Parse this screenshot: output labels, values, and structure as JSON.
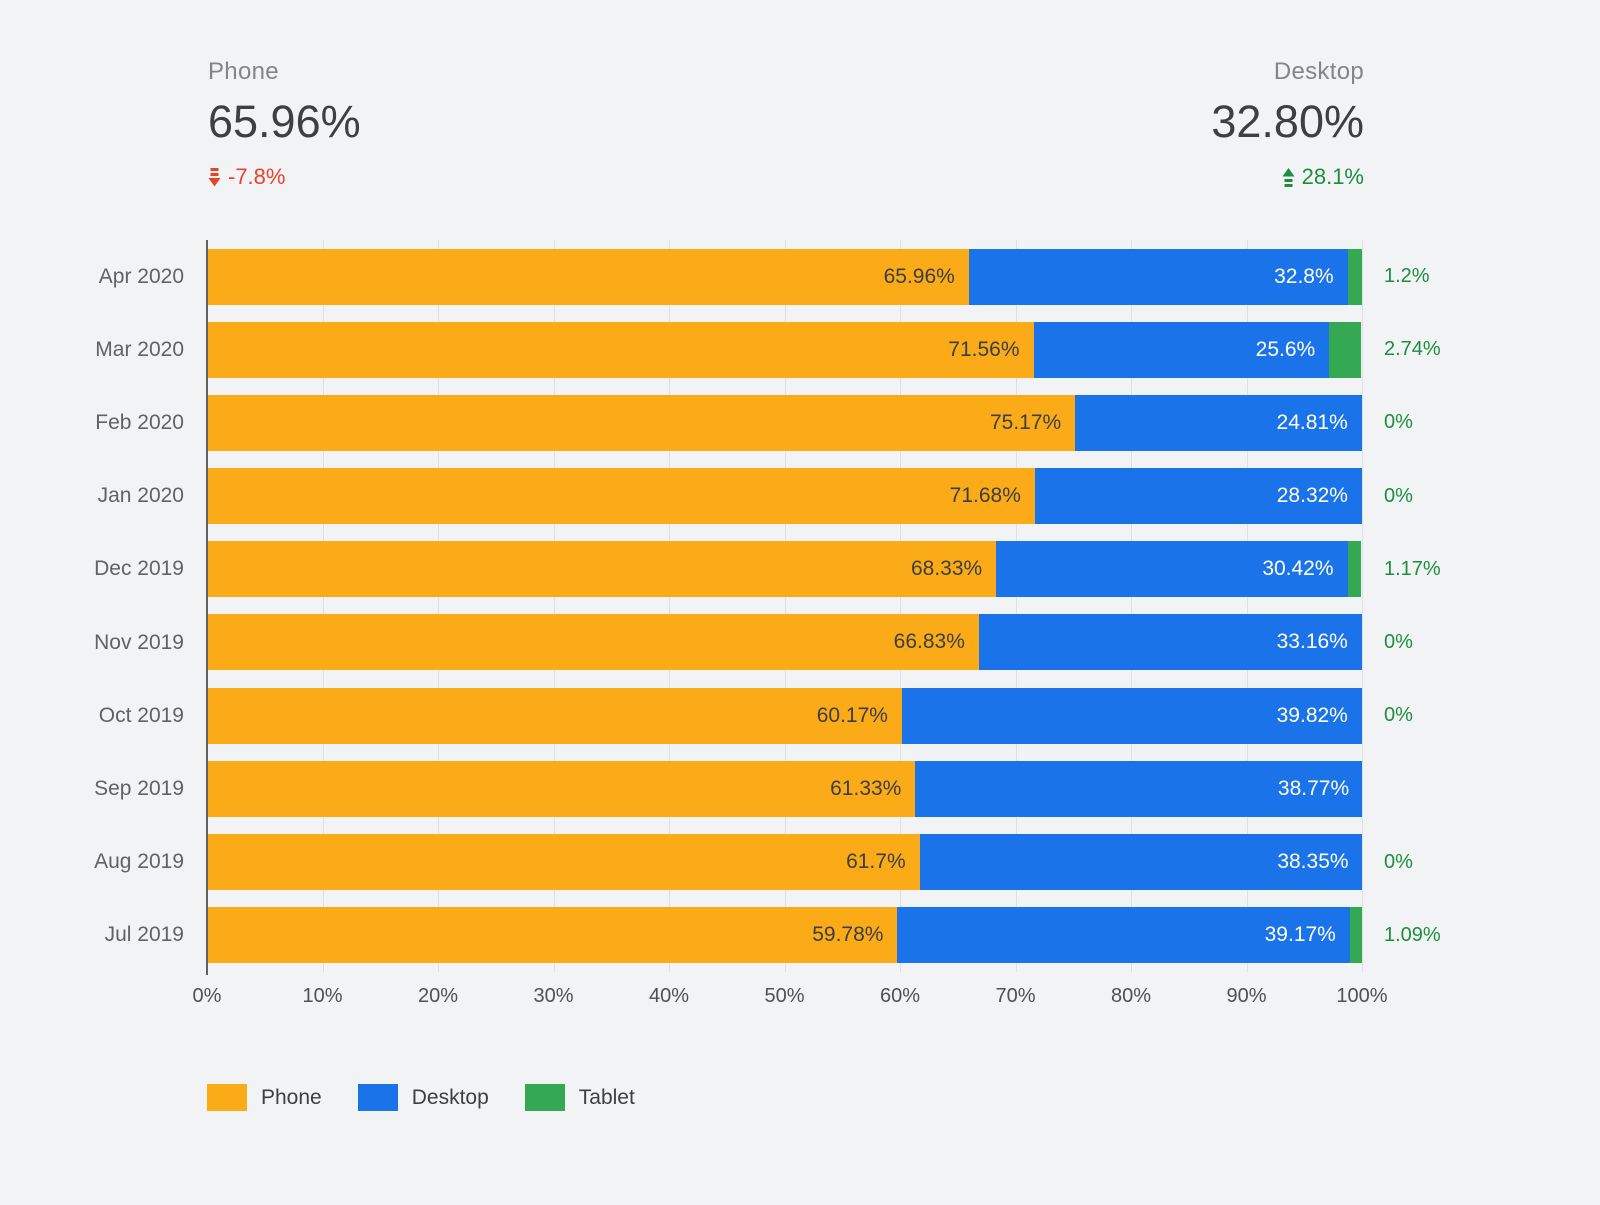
{
  "stats": {
    "phone": {
      "label": "Phone",
      "value": "65.96%",
      "delta": "-7.8%",
      "direction": "down"
    },
    "desktop": {
      "label": "Desktop",
      "value": "32.80%",
      "delta": "28.1%",
      "direction": "up"
    }
  },
  "colors": {
    "phone": "#FBAB18",
    "desktop": "#1A73E8",
    "tablet": "#34A853",
    "negative": "#E8442C",
    "positive": "#1E8E3E",
    "background": "#F1F3F4"
  },
  "chart_data": {
    "type": "bar",
    "orientation": "horizontal",
    "stacked": true,
    "title": "",
    "xlabel": "",
    "ylabel": "",
    "xlim": [
      0,
      100
    ],
    "grid": true,
    "legend_position": "bottom",
    "categories": [
      "Apr 2020",
      "Mar 2020",
      "Feb 2020",
      "Jan 2020",
      "Dec 2019",
      "Nov 2019",
      "Oct 2019",
      "Sep 2019",
      "Aug 2019",
      "Jul 2019"
    ],
    "series": [
      {
        "name": "Phone",
        "color": "#FBAB18",
        "values": [
          65.96,
          71.56,
          75.17,
          71.68,
          68.33,
          66.83,
          60.17,
          61.33,
          61.7,
          59.78
        ],
        "labels": [
          "65.96%",
          "71.56%",
          "75.17%",
          "71.68%",
          "68.33%",
          "66.83%",
          "60.17%",
          "61.33%",
          "61.7%",
          "59.78%"
        ]
      },
      {
        "name": "Desktop",
        "color": "#1A73E8",
        "values": [
          32.8,
          25.6,
          24.81,
          28.32,
          30.42,
          33.16,
          39.82,
          38.77,
          38.35,
          39.17
        ],
        "labels": [
          "32.8%",
          "25.6%",
          "24.81%",
          "28.32%",
          "30.42%",
          "33.16%",
          "39.82%",
          "38.77%",
          "38.35%",
          "39.17%"
        ]
      },
      {
        "name": "Tablet",
        "color": "#34A853",
        "values": [
          1.2,
          2.74,
          0,
          0,
          1.17,
          0,
          0,
          0,
          0,
          1.09
        ],
        "labels": [
          "1.2%",
          "2.74%",
          "0%",
          "0%",
          "1.17%",
          "0%",
          "0%",
          "",
          "0%",
          "1.09%"
        ]
      }
    ],
    "x_ticks": [
      "0%",
      "10%",
      "20%",
      "30%",
      "40%",
      "50%",
      "60%",
      "70%",
      "80%",
      "90%",
      "100%"
    ],
    "legend": [
      {
        "label": "Phone",
        "color": "#FBAB18"
      },
      {
        "label": "Desktop",
        "color": "#1A73E8"
      },
      {
        "label": "Tablet",
        "color": "#34A853"
      }
    ]
  }
}
